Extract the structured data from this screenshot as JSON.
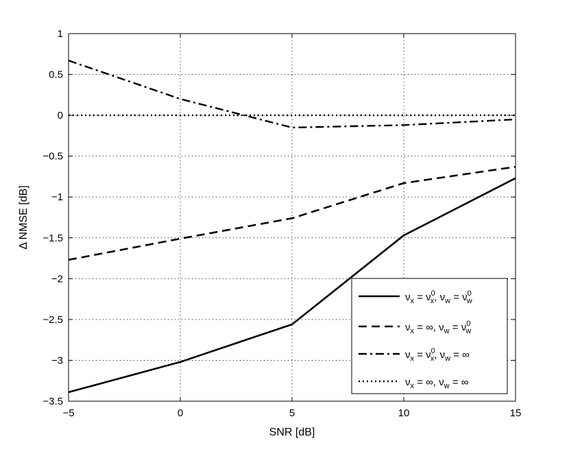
{
  "chart_data": {
    "type": "line",
    "xlabel": "SNR [dB]",
    "ylabel": "Δ NMSE [dB]",
    "xlim": [
      -5,
      15
    ],
    "ylim": [
      -3.5,
      1
    ],
    "xticks": [
      -5,
      0,
      5,
      10,
      15
    ],
    "xtick_labels": [
      "−5",
      "0",
      "5",
      "10",
      "15"
    ],
    "yticks": [
      1,
      0.5,
      0,
      -0.5,
      -1,
      -1.5,
      -2,
      -2.5,
      -3,
      -3.5
    ],
    "ytick_labels": [
      "1",
      "0.5",
      "0",
      "−0.5",
      "−1",
      "−1.5",
      "−2",
      "−2.5",
      "−3",
      "−3.5"
    ],
    "grid": true,
    "legend_position": "bottom-right",
    "x": [
      -5,
      0,
      5,
      10,
      15
    ],
    "series": [
      {
        "style": "solid",
        "values": [
          -3.39,
          -3.02,
          -2.56,
          -1.47,
          -0.77
        ],
        "legend": {
          "base1": "ν",
          "sub1": "x",
          "sup1": "",
          "mid": " = ν",
          "sub2": "x",
          "sup2": "0",
          "sep": ", ν",
          "sub3": "w",
          "eq2": " = ν",
          "sub4": "w",
          "sup4": "0",
          "tail": ""
        }
      },
      {
        "style": "dashed",
        "values": [
          -1.77,
          -1.51,
          -1.26,
          -0.83,
          -0.63
        ],
        "legend": {
          "base1": "ν",
          "sub1": "x",
          "sup1": "",
          "mid": " = ∞",
          "sub2": "",
          "sup2": "",
          "sep": ", ν",
          "sub3": "w",
          "eq2": " = ν",
          "sub4": "w",
          "sup4": "0",
          "tail": ""
        }
      },
      {
        "style": "dashdot",
        "values": [
          0.67,
          0.2,
          -0.15,
          -0.12,
          -0.05
        ],
        "legend": {
          "base1": "ν",
          "sub1": "x",
          "sup1": "",
          "mid": " = ν",
          "sub2": "x",
          "sup2": "0",
          "sep": ", ν",
          "sub3": "w",
          "eq2": " = ∞",
          "sub4": "",
          "sup4": "",
          "tail": ""
        }
      },
      {
        "style": "dotted",
        "values": [
          0,
          0,
          0,
          0,
          0
        ],
        "legend": {
          "base1": "ν",
          "sub1": "x",
          "sup1": "",
          "mid": " = ∞",
          "sub2": "",
          "sup2": "",
          "sep": ", ν",
          "sub3": "w",
          "eq2": " = ∞",
          "sub4": "",
          "sup4": "",
          "tail": ""
        }
      }
    ]
  }
}
